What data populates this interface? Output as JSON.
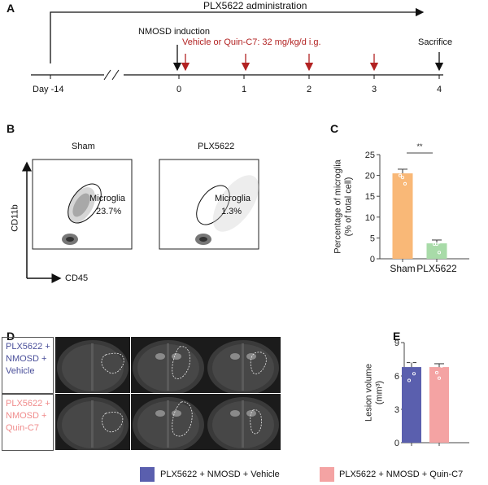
{
  "panel_a": {
    "label": "A",
    "admin_label": "PLX5622 administration",
    "induction_label": "NMOSD induction",
    "treatment_label": "Vehicle or Quin-C7: 32 mg/kg/d i.g.",
    "sacrifice_label": "Sacrifice",
    "timepoints": [
      "Day -14",
      "0",
      "1",
      "2",
      "3",
      "4"
    ],
    "treatment_color": "#b22222"
  },
  "panel_b": {
    "label": "B",
    "plots": [
      {
        "title": "Sham",
        "gate_label": "Microglia",
        "percent": "23.7%"
      },
      {
        "title": "PLX5622",
        "gate_label": "Microglia",
        "percent": "1.3%"
      }
    ],
    "y_axis": "CD11b",
    "x_axis": "CD45"
  },
  "panel_d": {
    "label": "D",
    "rows": [
      {
        "label": "PLX5622 + NMOSD + Vehicle",
        "color": "#4a4f9a"
      },
      {
        "label": "PLX5622 + NMOSD + Quin-C7",
        "color": "#f08c8c"
      }
    ]
  },
  "legend": [
    {
      "label": "PLX5622 + NMOSD + Vehicle",
      "color": "#5a5fae"
    },
    {
      "label": "PLX5622 + NMOSD + Quin-C7",
      "color": "#f4a3a3"
    }
  ],
  "chart_data": [
    {
      "panel": "C",
      "type": "bar",
      "categories": [
        "Sham",
        "PLX5622"
      ],
      "values": [
        20.5,
        3.7
      ],
      "error": [
        1.0,
        0.8
      ],
      "points": [
        [
          23.5,
          22,
          22,
          20,
          19.5,
          18
        ],
        [
          6,
          5,
          4,
          3.5,
          3.5,
          1.5
        ]
      ],
      "colors": [
        "#f9b877",
        "#a8dba8"
      ],
      "ylabel": "Percentage of microglia (% of total cell)",
      "ylim": [
        0,
        25
      ],
      "yticks": [
        "0",
        "5",
        "10",
        "15",
        "20",
        "25"
      ],
      "significance": "**"
    },
    {
      "panel": "E",
      "type": "bar",
      "categories": [
        "PLX5622 + NMOSD + Vehicle",
        "PLX5622 + NMOSD + Quin-C7"
      ],
      "values": [
        6.8,
        6.8
      ],
      "error": [
        0.4,
        0.3
      ],
      "points": [
        [
          8,
          7.3,
          6.2,
          5.6
        ],
        [
          7.8,
          7.5,
          6.9,
          6.3,
          5.8
        ]
      ],
      "colors": [
        "#5a5fae",
        "#f4a3a3"
      ],
      "ylabel": "Lesion volume (mm³)",
      "ylim": [
        0,
        9
      ],
      "yticks": [
        "0",
        "3",
        "6",
        "9"
      ]
    }
  ]
}
